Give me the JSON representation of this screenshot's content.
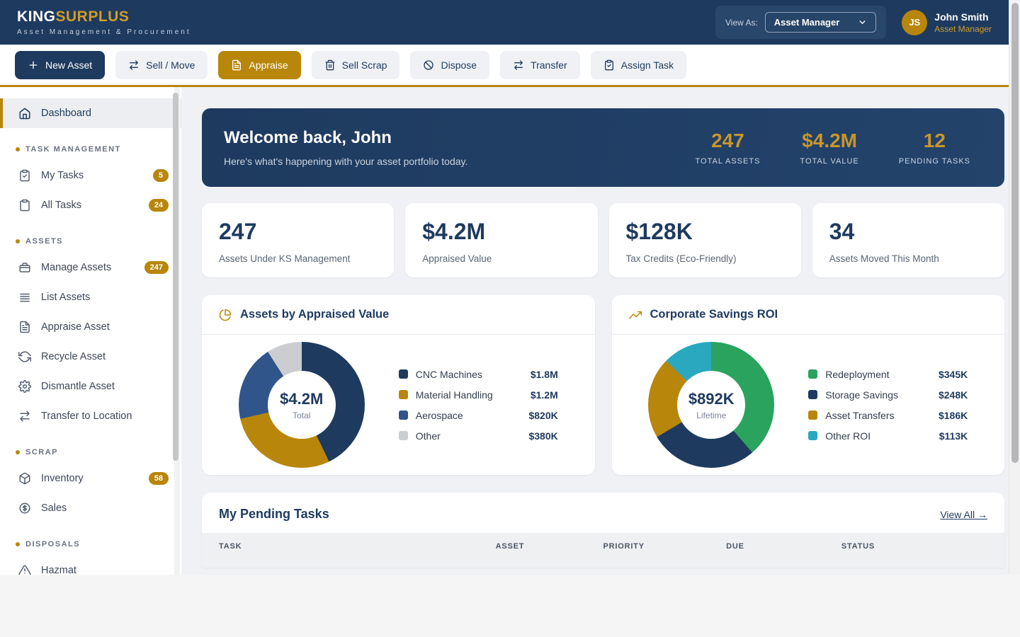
{
  "colors": {
    "navy": "#1e3a5f",
    "gold": "#b8860b",
    "gold_bright": "#c9962a",
    "green": "#2aa35e",
    "teal": "#29a8bf",
    "mid_blue": "#30558a",
    "light_gray": "#cbcdd1"
  },
  "brand": {
    "name_primary": "KING",
    "name_secondary": "SURPLUS",
    "tagline": "Asset Management & Procurement"
  },
  "header": {
    "view_as_label": "View As:",
    "view_as_value": "Asset Manager",
    "user": {
      "initials": "JS",
      "name": "John Smith",
      "role": "Asset Manager"
    }
  },
  "toolbar": {
    "buttons": [
      {
        "label": "New Asset",
        "icon": "plus",
        "variant": "primary"
      },
      {
        "label": "Sell / Move",
        "icon": "transfer-arrows",
        "variant": "default"
      },
      {
        "label": "Appraise",
        "icon": "file-text",
        "variant": "active"
      },
      {
        "label": "Sell Scrap",
        "icon": "trash",
        "variant": "default"
      },
      {
        "label": "Dispose",
        "icon": "ban",
        "variant": "default"
      },
      {
        "label": "Transfer",
        "icon": "transfer-arrows",
        "variant": "default"
      },
      {
        "label": "Assign Task",
        "icon": "clipboard-check",
        "variant": "default"
      }
    ]
  },
  "sidebar": {
    "sections": [
      {
        "heading": null,
        "items": [
          {
            "label": "Dashboard",
            "icon": "home",
            "badge": null,
            "active": true
          }
        ]
      },
      {
        "heading": "TASK MANAGEMENT",
        "items": [
          {
            "label": "My Tasks",
            "icon": "clipboard-check",
            "badge": "5",
            "active": false
          },
          {
            "label": "All Tasks",
            "icon": "clipboard",
            "badge": "24",
            "active": false
          }
        ]
      },
      {
        "heading": "ASSETS",
        "items": [
          {
            "label": "Manage Assets",
            "icon": "briefcase",
            "badge": "247",
            "active": false
          },
          {
            "label": "List Assets",
            "icon": "list",
            "badge": null,
            "active": false
          },
          {
            "label": "Appraise Asset",
            "icon": "file-text",
            "badge": null,
            "active": false
          },
          {
            "label": "Recycle Asset",
            "icon": "refresh",
            "badge": null,
            "active": false
          },
          {
            "label": "Dismantle Asset",
            "icon": "gear",
            "badge": null,
            "active": false
          },
          {
            "label": "Transfer to Location",
            "icon": "transfer-arrows",
            "badge": null,
            "active": false
          }
        ]
      },
      {
        "heading": "SCRAP",
        "items": [
          {
            "label": "Inventory",
            "icon": "cube",
            "badge": "58",
            "active": false
          },
          {
            "label": "Sales",
            "icon": "dollar-circle",
            "badge": null,
            "active": false
          }
        ]
      },
      {
        "heading": "DISPOSALS",
        "items": [
          {
            "label": "Hazmat",
            "icon": "warning-triangle",
            "badge": null,
            "active": false
          }
        ]
      }
    ]
  },
  "banner": {
    "title": "Welcome back, John",
    "subtitle": "Here's what's happening with your asset portfolio today.",
    "stats": [
      {
        "value": "247",
        "label": "TOTAL ASSETS"
      },
      {
        "value": "$4.2M",
        "label": "TOTAL VALUE"
      },
      {
        "value": "12",
        "label": "PENDING TASKS"
      }
    ]
  },
  "stat_cards": [
    {
      "value": "247",
      "label": "Assets Under KS Management"
    },
    {
      "value": "$4.2M",
      "label": "Appraised Value"
    },
    {
      "value": "$128K",
      "label": "Tax Credits (Eco-Friendly)"
    },
    {
      "value": "34",
      "label": "Assets Moved This Month"
    }
  ],
  "chart_data": [
    {
      "type": "pie",
      "title": "Assets by Appraised Value",
      "header_icon": "pie",
      "center_value": "$4.2M",
      "center_label": "Total",
      "legend_position": "right",
      "segments": [
        {
          "label": "CNC Machines",
          "value": 1800000,
          "value_display": "$1.8M",
          "color": "#1e3a5f"
        },
        {
          "label": "Material Handling",
          "value": 1200000,
          "value_display": "$1.2M",
          "color": "#b8860b"
        },
        {
          "label": "Aerospace",
          "value": 820000,
          "value_display": "$820K",
          "color": "#30558a"
        },
        {
          "label": "Other",
          "value": 380000,
          "value_display": "$380K",
          "color": "#cbcdd1"
        }
      ]
    },
    {
      "type": "pie",
      "title": "Corporate Savings ROI",
      "header_icon": "trending-up",
      "center_value": "$892K",
      "center_label": "Lifetime",
      "legend_position": "right",
      "segments": [
        {
          "label": "Redeployment",
          "value": 345000,
          "value_display": "$345K",
          "color": "#2aa35e"
        },
        {
          "label": "Storage Savings",
          "value": 248000,
          "value_display": "$248K",
          "color": "#1e3a5f"
        },
        {
          "label": "Asset Transfers",
          "value": 186000,
          "value_display": "$186K",
          "color": "#b8860b"
        },
        {
          "label": "Other ROI",
          "value": 113000,
          "value_display": "$113K",
          "color": "#29a8bf"
        }
      ]
    }
  ],
  "tasks": {
    "title": "My Pending Tasks",
    "view_all_label": "View All →",
    "columns": [
      "TASK",
      "ASSET",
      "PRIORITY",
      "DUE",
      "STATUS"
    ]
  }
}
